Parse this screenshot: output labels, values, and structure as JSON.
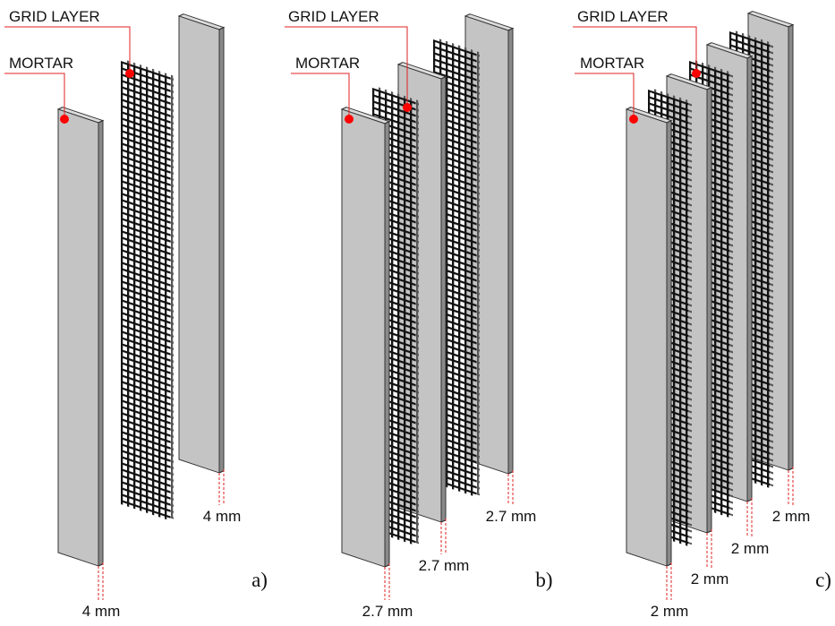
{
  "panels": [
    {
      "grid_label": "GRID LAYER",
      "mortar_label": "MORTAR",
      "thicknesses": [
        "4 mm",
        "4 mm"
      ],
      "label": "a)"
    },
    {
      "grid_label": "GRID LAYER",
      "mortar_label": "MORTAR",
      "thicknesses": [
        "2.7 mm",
        "2.7 mm",
        "2.7 mm"
      ],
      "label": "b)"
    },
    {
      "grid_label": "GRID LAYER",
      "mortar_label": "MORTAR",
      "thicknesses": [
        "2 mm",
        "2 mm",
        "2 mm",
        "2 mm"
      ],
      "label": "c)"
    }
  ]
}
